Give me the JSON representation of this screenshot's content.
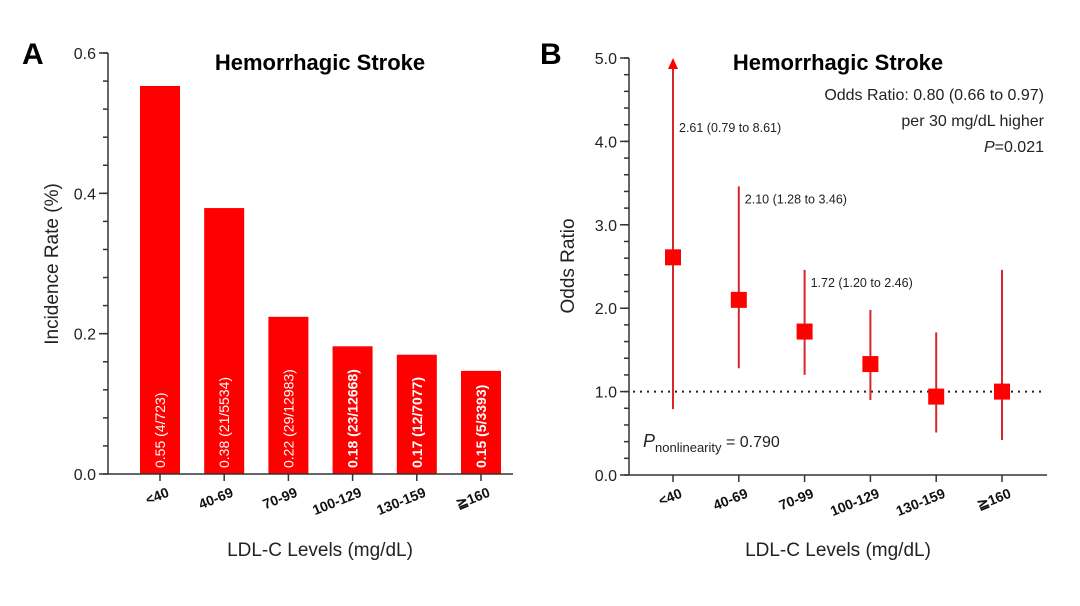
{
  "chart_data": [
    {
      "panel": "A",
      "type": "bar",
      "title": "Hemorrhagic Stroke",
      "xlabel": "LDL-C Levels (mg/dL)",
      "ylabel": "Incidence Rate (%)",
      "ylim": [
        0,
        0.6
      ],
      "yticks": [
        "0.0",
        "0.2",
        "0.4",
        "0.6"
      ],
      "ytick_values": [
        0,
        0.2,
        0.4,
        0.6
      ],
      "minor_tick_step": 0.04,
      "categories": [
        "<40",
        "40-69",
        "70-99",
        "100-129",
        "130-159",
        "≧160"
      ],
      "values": [
        0.553,
        0.379,
        0.224,
        0.182,
        0.17,
        0.147
      ],
      "bar_labels": [
        "0.55 (4/723)",
        "0.38 (21/5534)",
        "0.22 (29/12983)",
        "0.18 (23/12668)",
        "0.17 (12/7077)",
        "0.15 (5/3393)"
      ],
      "bar_label_bold": [
        false,
        false,
        false,
        true,
        true,
        true
      ],
      "color": "#ff0000",
      "grid": false
    },
    {
      "panel": "B",
      "type": "scatter",
      "title": "Hemorrhagic Stroke",
      "xlabel": "LDL-C Levels (mg/dL)",
      "ylabel": "Odds Ratio",
      "ylim": [
        0,
        5.0
      ],
      "yticks": [
        "0.0",
        "1.0",
        "2.0",
        "3.0",
        "4.0",
        "5.0"
      ],
      "ytick_values": [
        0,
        1,
        2,
        3,
        4,
        5
      ],
      "minor_tick_step": 0.2,
      "reference_line": 1.0,
      "categories": [
        "<40",
        "40-69",
        "70-99",
        "100-129",
        "130-159",
        "≧160"
      ],
      "points": [
        {
          "or": 2.61,
          "lower": 0.79,
          "upper": 8.61,
          "label": "2.61 (0.79 to 8.61)",
          "truncated_arrow": true
        },
        {
          "or": 2.1,
          "lower": 1.28,
          "upper": 3.46,
          "label": "2.10 (1.28 to 3.46)"
        },
        {
          "or": 1.72,
          "lower": 1.2,
          "upper": 2.46,
          "label": "1.72 (1.20 to 2.46)"
        },
        {
          "or": 1.33,
          "lower": 0.9,
          "upper": 1.98,
          "label": ""
        },
        {
          "or": 0.94,
          "lower": 0.51,
          "upper": 1.71,
          "label": ""
        },
        {
          "or": 1.0,
          "lower": 0.42,
          "upper": 2.46,
          "label": ""
        }
      ],
      "annotations": {
        "or_summary": "Odds Ratio: 0.80 (0.66 to 0.97)",
        "per_unit": "per 30 mg/dL higher",
        "p_prefix": "P",
        "p_value": "=0.021",
        "p_nonlin_prefix": "P",
        "p_nonlin_sub": "nonlinearity",
        "p_nonlin_value": " = 0.790"
      },
      "marker_color": "#ff0000",
      "ci_color": "#d9262b",
      "grid": false
    }
  ],
  "panels": {
    "a_letter": "A",
    "b_letter": "B"
  }
}
